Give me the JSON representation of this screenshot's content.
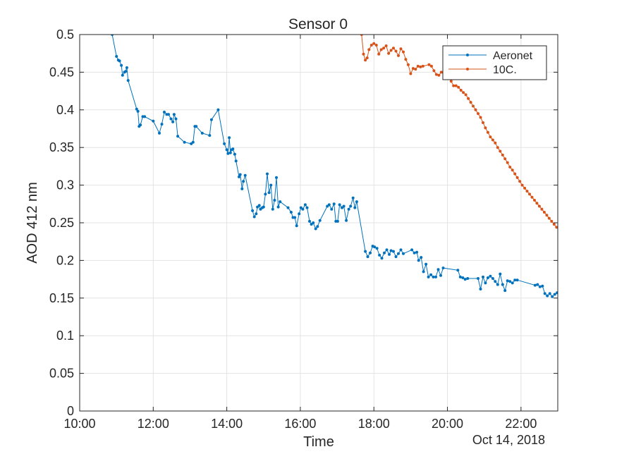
{
  "chart_data": {
    "type": "line",
    "title": "Sensor 0",
    "xlabel": "Time",
    "ylabel": "AOD 412 nm",
    "x_secondary_label": "Oct 14, 2018",
    "xlim": [
      "10:00",
      "23:00"
    ],
    "ylim": [
      0,
      0.5
    ],
    "x_ticks": [
      "10:00",
      "12:00",
      "14:00",
      "16:00",
      "18:00",
      "20:00",
      "22:00"
    ],
    "y_ticks": [
      "0",
      "0.05",
      "0.1",
      "0.15",
      "0.2",
      "0.25",
      "0.3",
      "0.35",
      "0.4",
      "0.45",
      "0.5"
    ],
    "grid": true,
    "legend_position": "top-right",
    "series": [
      {
        "name": "Aeronet",
        "color": "#0072BD",
        "marker": "dot",
        "points": [
          [
            "10:53",
            0.5
          ],
          [
            "11:00",
            0.471
          ],
          [
            "11:03",
            0.466
          ],
          [
            "11:05",
            0.465
          ],
          [
            "11:08",
            0.459
          ],
          [
            "11:10",
            0.446
          ],
          [
            "11:13",
            0.45
          ],
          [
            "11:15",
            0.451
          ],
          [
            "11:17",
            0.456
          ],
          [
            "11:19",
            0.439
          ],
          [
            "11:33",
            0.401
          ],
          [
            "11:35",
            0.398
          ],
          [
            "11:37",
            0.378
          ],
          [
            "11:39",
            0.38
          ],
          [
            "11:43",
            0.391
          ],
          [
            "11:46",
            0.391
          ],
          [
            "12:00",
            0.385
          ],
          [
            "12:10",
            0.369
          ],
          [
            "12:14",
            0.381
          ],
          [
            "12:18",
            0.397
          ],
          [
            "12:22",
            0.394
          ],
          [
            "12:25",
            0.394
          ],
          [
            "12:29",
            0.388
          ],
          [
            "12:32",
            0.384
          ],
          [
            "12:34",
            0.394
          ],
          [
            "12:37",
            0.388
          ],
          [
            "12:40",
            0.365
          ],
          [
            "12:51",
            0.357
          ],
          [
            "13:02",
            0.355
          ],
          [
            "13:05",
            0.357
          ],
          [
            "13:08",
            0.378
          ],
          [
            "13:10",
            0.378
          ],
          [
            "13:20",
            0.369
          ],
          [
            "13:32",
            0.366
          ],
          [
            "13:35",
            0.387
          ],
          [
            "13:46",
            0.4
          ],
          [
            "13:56",
            0.355
          ],
          [
            "14:00",
            0.347
          ],
          [
            "14:02",
            0.342
          ],
          [
            "14:04",
            0.363
          ],
          [
            "14:06",
            0.343
          ],
          [
            "14:08",
            0.347
          ],
          [
            "14:10",
            0.348
          ],
          [
            "14:13",
            0.341
          ],
          [
            "14:15",
            0.332
          ],
          [
            "14:20",
            0.311
          ],
          [
            "14:22",
            0.314
          ],
          [
            "14:25",
            0.295
          ],
          [
            "14:27",
            0.305
          ],
          [
            "14:30",
            0.313
          ],
          [
            "14:42",
            0.266
          ],
          [
            "14:45",
            0.258
          ],
          [
            "14:48",
            0.262
          ],
          [
            "14:50",
            0.271
          ],
          [
            "14:53",
            0.273
          ],
          [
            "14:55",
            0.268
          ],
          [
            "14:58",
            0.27
          ],
          [
            "15:00",
            0.271
          ],
          [
            "15:03",
            0.288
          ],
          [
            "15:06",
            0.315
          ],
          [
            "15:09",
            0.29
          ],
          [
            "15:12",
            0.3
          ],
          [
            "15:15",
            0.268
          ],
          [
            "15:18",
            0.28
          ],
          [
            "15:21",
            0.31
          ],
          [
            "15:24",
            0.271
          ],
          [
            "15:27",
            0.278
          ],
          [
            "15:40",
            0.27
          ],
          [
            "15:45",
            0.264
          ],
          [
            "15:48",
            0.257
          ],
          [
            "15:51",
            0.257
          ],
          [
            "15:54",
            0.246
          ],
          [
            "15:58",
            0.262
          ],
          [
            "16:01",
            0.27
          ],
          [
            "16:04",
            0.268
          ],
          [
            "16:08",
            0.274
          ],
          [
            "16:11",
            0.27
          ],
          [
            "16:15",
            0.252
          ],
          [
            "16:18",
            0.248
          ],
          [
            "16:21",
            0.25
          ],
          [
            "16:25",
            0.242
          ],
          [
            "16:28",
            0.245
          ],
          [
            "16:32",
            0.253
          ],
          [
            "16:44",
            0.272
          ],
          [
            "16:47",
            0.274
          ],
          [
            "16:51",
            0.268
          ],
          [
            "16:55",
            0.275
          ],
          [
            "16:58",
            0.252
          ],
          [
            "17:01",
            0.252
          ],
          [
            "17:04",
            0.274
          ],
          [
            "17:08",
            0.27
          ],
          [
            "17:11",
            0.272
          ],
          [
            "17:15",
            0.253
          ],
          [
            "17:19",
            0.268
          ],
          [
            "17:22",
            0.272
          ],
          [
            "17:26",
            0.283
          ],
          [
            "17:29",
            0.27
          ],
          [
            "17:32",
            0.278
          ],
          [
            "17:46",
            0.212
          ],
          [
            "17:50",
            0.205
          ],
          [
            "17:54",
            0.21
          ],
          [
            "17:58",
            0.219
          ],
          [
            "18:01",
            0.218
          ],
          [
            "18:05",
            0.216
          ],
          [
            "18:09",
            0.207
          ],
          [
            "18:13",
            0.203
          ],
          [
            "18:17",
            0.21
          ],
          [
            "18:21",
            0.214
          ],
          [
            "18:25",
            0.208
          ],
          [
            "18:28",
            0.213
          ],
          [
            "18:32",
            0.212
          ],
          [
            "18:36",
            0.205
          ],
          [
            "18:40",
            0.209
          ],
          [
            "18:44",
            0.214
          ],
          [
            "18:48",
            0.209
          ],
          [
            "19:02",
            0.214
          ],
          [
            "19:06",
            0.21
          ],
          [
            "19:10",
            0.211
          ],
          [
            "19:13",
            0.2
          ],
          [
            "19:17",
            0.204
          ],
          [
            "19:21",
            0.185
          ],
          [
            "19:25",
            0.195
          ],
          [
            "19:29",
            0.178
          ],
          [
            "19:33",
            0.181
          ],
          [
            "19:37",
            0.178
          ],
          [
            "19:41",
            0.178
          ],
          [
            "19:45",
            0.188
          ],
          [
            "19:49",
            0.18
          ],
          [
            "19:53",
            0.19
          ],
          [
            "20:17",
            0.187
          ],
          [
            "20:21",
            0.178
          ],
          [
            "20:25",
            0.177
          ],
          [
            "20:29",
            0.175
          ],
          [
            "20:33",
            0.176
          ],
          [
            "20:50",
            0.176
          ],
          [
            "20:54",
            0.162
          ],
          [
            "20:58",
            0.178
          ],
          [
            "21:02",
            0.17
          ],
          [
            "21:06",
            0.177
          ],
          [
            "21:10",
            0.179
          ],
          [
            "21:14",
            0.176
          ],
          [
            "21:18",
            0.172
          ],
          [
            "21:22",
            0.168
          ],
          [
            "21:26",
            0.182
          ],
          [
            "21:30",
            0.168
          ],
          [
            "21:34",
            0.16
          ],
          [
            "21:38",
            0.173
          ],
          [
            "21:42",
            0.172
          ],
          [
            "21:46",
            0.17
          ],
          [
            "21:50",
            0.174
          ],
          [
            "21:54",
            0.174
          ],
          [
            "22:23",
            0.167
          ],
          [
            "22:27",
            0.168
          ],
          [
            "22:31",
            0.165
          ],
          [
            "22:35",
            0.166
          ],
          [
            "22:39",
            0.156
          ],
          [
            "22:43",
            0.153
          ],
          [
            "22:47",
            0.156
          ],
          [
            "22:51",
            0.152
          ],
          [
            "22:55",
            0.155
          ],
          [
            "22:59",
            0.157
          ]
        ]
      },
      {
        "name": "10C.",
        "color": "#D95319",
        "marker": "dot",
        "points": [
          [
            "17:40",
            0.5
          ],
          [
            "17:43",
            0.474
          ],
          [
            "17:46",
            0.466
          ],
          [
            "17:49",
            0.469
          ],
          [
            "17:52",
            0.48
          ],
          [
            "17:56",
            0.486
          ],
          [
            "18:00",
            0.488
          ],
          [
            "18:04",
            0.486
          ],
          [
            "18:08",
            0.474
          ],
          [
            "18:12",
            0.48
          ],
          [
            "18:16",
            0.482
          ],
          [
            "18:20",
            0.485
          ],
          [
            "18:24",
            0.475
          ],
          [
            "18:28",
            0.479
          ],
          [
            "18:32",
            0.482
          ],
          [
            "18:36",
            0.478
          ],
          [
            "18:40",
            0.472
          ],
          [
            "18:44",
            0.481
          ],
          [
            "18:48",
            0.477
          ],
          [
            "18:52",
            0.467
          ],
          [
            "18:56",
            0.46
          ],
          [
            "19:00",
            0.448
          ],
          [
            "19:04",
            0.455
          ],
          [
            "19:08",
            0.454
          ],
          [
            "19:12",
            0.458
          ],
          [
            "19:16",
            0.457
          ],
          [
            "19:20",
            0.458
          ],
          [
            "19:30",
            0.46
          ],
          [
            "19:34",
            0.458
          ],
          [
            "19:38",
            0.452
          ],
          [
            "19:42",
            0.447
          ],
          [
            "19:46",
            0.446
          ],
          [
            "19:50",
            0.45
          ],
          [
            "19:54",
            0.448
          ],
          [
            "19:58",
            0.447
          ],
          [
            "20:02",
            0.445
          ],
          [
            "20:06",
            0.438
          ],
          [
            "20:10",
            0.432
          ],
          [
            "20:14",
            0.432
          ],
          [
            "20:18",
            0.43
          ],
          [
            "20:22",
            0.426
          ],
          [
            "20:26",
            0.423
          ],
          [
            "20:30",
            0.42
          ],
          [
            "20:34",
            0.415
          ],
          [
            "20:38",
            0.41
          ],
          [
            "20:42",
            0.405
          ],
          [
            "20:46",
            0.4
          ],
          [
            "20:50",
            0.395
          ],
          [
            "20:54",
            0.39
          ],
          [
            "20:58",
            0.383
          ],
          [
            "21:02",
            0.376
          ],
          [
            "21:06",
            0.37
          ],
          [
            "21:10",
            0.364
          ],
          [
            "21:14",
            0.36
          ],
          [
            "21:18",
            0.356
          ],
          [
            "21:22",
            0.35
          ],
          [
            "21:26",
            0.345
          ],
          [
            "21:30",
            0.34
          ],
          [
            "21:34",
            0.335
          ],
          [
            "21:38",
            0.33
          ],
          [
            "21:42",
            0.324
          ],
          [
            "21:46",
            0.32
          ],
          [
            "21:50",
            0.315
          ],
          [
            "21:54",
            0.31
          ],
          [
            "21:58",
            0.305
          ],
          [
            "22:02",
            0.3
          ],
          [
            "22:06",
            0.296
          ],
          [
            "22:10",
            0.292
          ],
          [
            "22:14",
            0.288
          ],
          [
            "22:18",
            0.284
          ],
          [
            "22:22",
            0.28
          ],
          [
            "22:26",
            0.276
          ],
          [
            "22:30",
            0.272
          ],
          [
            "22:34",
            0.268
          ],
          [
            "22:38",
            0.264
          ],
          [
            "22:42",
            0.26
          ],
          [
            "22:46",
            0.256
          ],
          [
            "22:50",
            0.252
          ],
          [
            "22:54",
            0.248
          ],
          [
            "22:58",
            0.244
          ]
        ]
      }
    ]
  }
}
